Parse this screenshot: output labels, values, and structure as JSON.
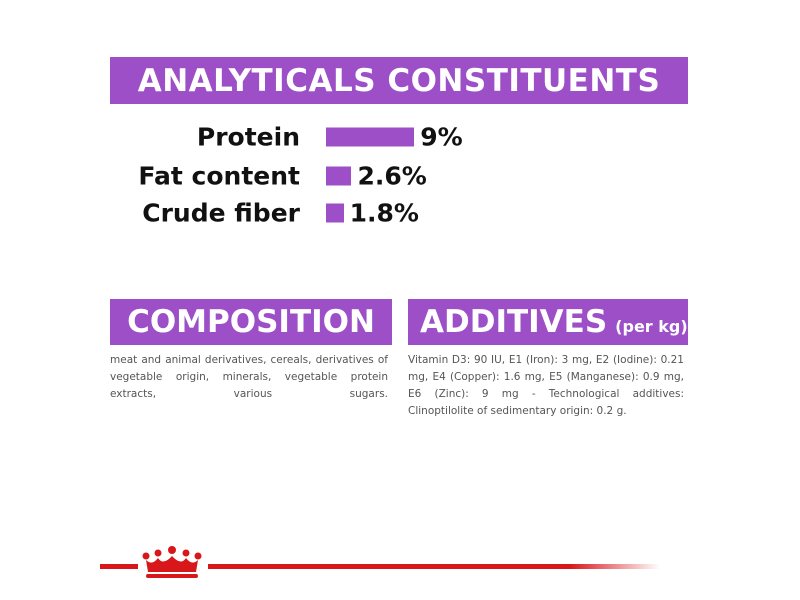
{
  "analyticals": {
    "title": "ANALYTICALS CONSTITUENTS",
    "items": [
      {
        "name": "Protein",
        "value": 9,
        "value_label": "9%"
      },
      {
        "name": "Fat content",
        "value": 2.6,
        "value_label": "2.6%"
      },
      {
        "name": "Crude fiber",
        "value": 1.8,
        "value_label": "1.8%"
      }
    ]
  },
  "composition": {
    "title": "COMPOSITION",
    "text": "meat and animal derivatives, cereals, derivatives of vegetable origin, minerals, vegetable protein extracts, various sugars."
  },
  "additives": {
    "title": "ADDITIVES",
    "unit": "(per kg)",
    "text": "Vitamin D3: 90 IU, E1 (Iron): 3 mg, E2 (Iodine): 0.21 mg, E4 (Copper): 1.6 mg, E5 (Manganese): 0.9 mg, E6 (Zinc): 9 mg - Technological additives: Clinoptilolite of sedimentary origin: 0.2 g."
  }
}
